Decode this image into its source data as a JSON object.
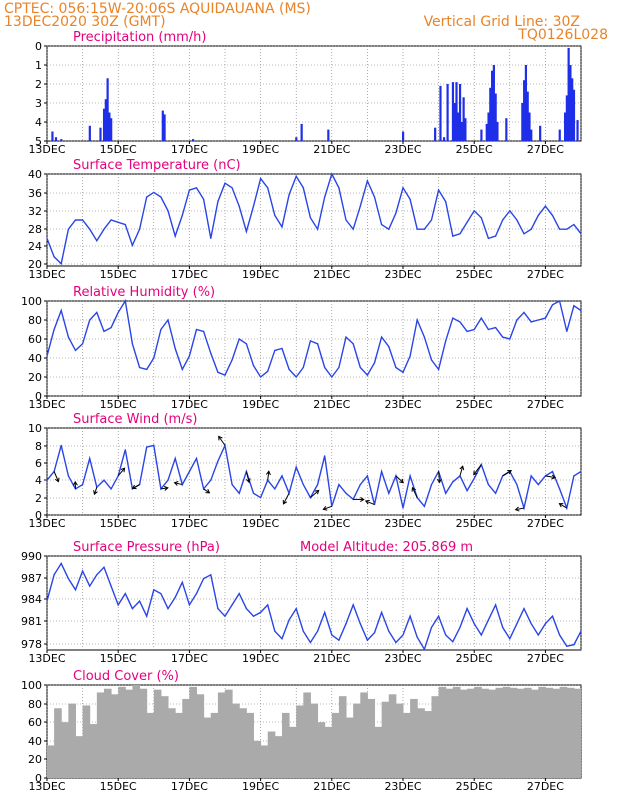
{
  "header": {
    "line1_left": "CPTEC:   056:15W-20:06S   AQUIDAUANA (MS)",
    "line2_left": "13DEC2020 30Z (GMT)",
    "line2_right": "Vertical Grid Line: 30Z",
    "line3_right": "TQ0126L028"
  },
  "colors": {
    "line": "#2a45e6",
    "bar": "#1f2fe8",
    "cloud": "#aaaaaa",
    "title": "#e5007e",
    "header": "#e8842a"
  },
  "chart_data": [
    {
      "type": "bar",
      "title": "Precipitation (mm/h)",
      "ylim": [
        0,
        5
      ],
      "yticks": [
        "0",
        "1",
        "2",
        "3",
        "4",
        "5"
      ],
      "xticks": [
        "13DEC",
        "15DEC",
        "17DEC",
        "19DEC",
        "21DEC",
        "23DEC",
        "25DEC",
        "27DEC"
      ],
      "bars": [
        [
          13.15,
          0.5
        ],
        [
          13.25,
          0.2
        ],
        [
          13.4,
          0.1
        ],
        [
          14.2,
          0.8
        ],
        [
          14.5,
          0.7
        ],
        [
          14.6,
          1.7
        ],
        [
          14.65,
          2.2
        ],
        [
          14.7,
          3.3
        ],
        [
          14.75,
          1.5
        ],
        [
          14.8,
          1.2
        ],
        [
          16.25,
          1.6
        ],
        [
          16.3,
          1.4
        ],
        [
          17.1,
          0.1
        ],
        [
          20.0,
          0.2
        ],
        [
          20.15,
          0.9
        ],
        [
          20.9,
          0.6
        ],
        [
          23.0,
          0.5
        ],
        [
          23.9,
          0.7
        ],
        [
          24.05,
          2.9
        ],
        [
          24.15,
          0.2
        ],
        [
          24.25,
          3.0
        ],
        [
          24.4,
          3.1
        ],
        [
          24.45,
          2.0
        ],
        [
          24.5,
          3.1
        ],
        [
          24.55,
          1.5
        ],
        [
          24.6,
          3.0
        ],
        [
          24.65,
          1.0
        ],
        [
          24.7,
          2.3
        ],
        [
          24.75,
          1.2
        ],
        [
          25.2,
          0.6
        ],
        [
          25.35,
          0.9
        ],
        [
          25.4,
          1.5
        ],
        [
          25.45,
          2.8
        ],
        [
          25.5,
          3.7
        ],
        [
          25.55,
          4.0
        ],
        [
          25.6,
          2.5
        ],
        [
          25.65,
          1.0
        ],
        [
          25.9,
          1.2
        ],
        [
          26.35,
          2.0
        ],
        [
          26.4,
          3.2
        ],
        [
          26.45,
          4.0
        ],
        [
          26.5,
          2.6
        ],
        [
          26.55,
          1.5
        ],
        [
          26.6,
          0.6
        ],
        [
          26.85,
          0.8
        ],
        [
          27.4,
          0.6
        ],
        [
          27.55,
          1.5
        ],
        [
          27.6,
          2.4
        ],
        [
          27.65,
          4.9
        ],
        [
          27.7,
          4.0
        ],
        [
          27.75,
          3.3
        ],
        [
          27.8,
          2.7
        ],
        [
          27.9,
          1.1
        ]
      ]
    },
    {
      "type": "line",
      "title": "Surface Temperature (nC)",
      "ylim": [
        20,
        40
      ],
      "yticks": [
        "20",
        "24",
        "28",
        "32",
        "36",
        "40"
      ],
      "xticks": [
        "13DEC",
        "15DEC",
        "17DEC",
        "19DEC",
        "21DEC",
        "23DEC",
        "25DEC",
        "27DEC"
      ],
      "x": [
        13,
        13.2,
        13.4,
        13.6,
        13.8,
        14,
        14.2,
        14.4,
        14.6,
        14.8,
        15,
        15.2,
        15.4,
        15.6,
        15.8,
        16,
        16.2,
        16.4,
        16.6,
        16.8,
        17,
        17.2,
        17.4,
        17.6,
        17.8,
        18,
        18.2,
        18.4,
        18.6,
        18.8,
        19,
        19.2,
        19.4,
        19.6,
        19.8,
        20,
        20.2,
        20.4,
        20.6,
        20.8,
        21,
        21.2,
        21.4,
        21.6,
        21.8,
        22,
        22.2,
        22.4,
        22.6,
        22.8,
        23,
        23.2,
        23.4,
        23.6,
        23.8,
        24,
        24.2,
        24.4,
        24.6,
        24.8,
        25,
        25.2,
        25.4,
        25.6,
        25.8,
        26,
        26.2,
        26.4,
        26.6,
        26.8,
        27,
        27.2,
        27.4,
        27.6,
        27.8,
        28
      ],
      "y": [
        26,
        22,
        20.5,
        28,
        30,
        30,
        28,
        25.5,
        28,
        30,
        29.5,
        29,
        24.5,
        28,
        35,
        36,
        35,
        32,
        26.5,
        31,
        36.5,
        37,
        34.5,
        26,
        34,
        38,
        37,
        33,
        27.5,
        33,
        39,
        37,
        31,
        28.5,
        35.5,
        39.5,
        37,
        30.5,
        28,
        35,
        40,
        37,
        30,
        28,
        33,
        38.5,
        35,
        29,
        28,
        31.5,
        37,
        34.5,
        28,
        28,
        30,
        36.5,
        34,
        26.5,
        27,
        29.5,
        32,
        30.5,
        26,
        26.5,
        30,
        32,
        30,
        27,
        28,
        31,
        33,
        31,
        28,
        28,
        29,
        27
      ]
    },
    {
      "type": "line",
      "title": "Relative Humidity (%)",
      "ylim": [
        0,
        100
      ],
      "yticks": [
        "0",
        "20",
        "40",
        "60",
        "80",
        "100"
      ],
      "xticks": [
        "13DEC",
        "15DEC",
        "17DEC",
        "19DEC",
        "21DEC",
        "23DEC",
        "25DEC",
        "27DEC"
      ],
      "x": [
        13,
        13.2,
        13.4,
        13.6,
        13.8,
        14,
        14.2,
        14.4,
        14.6,
        14.8,
        15,
        15.2,
        15.4,
        15.6,
        15.8,
        16,
        16.2,
        16.4,
        16.6,
        16.8,
        17,
        17.2,
        17.4,
        17.6,
        17.8,
        18,
        18.2,
        18.4,
        18.6,
        18.8,
        19,
        19.2,
        19.4,
        19.6,
        19.8,
        20,
        20.2,
        20.4,
        20.6,
        20.8,
        21,
        21.2,
        21.4,
        21.6,
        21.8,
        22,
        22.2,
        22.4,
        22.6,
        22.8,
        23,
        23.2,
        23.4,
        23.6,
        23.8,
        24,
        24.2,
        24.4,
        24.6,
        24.8,
        25,
        25.2,
        25.4,
        25.6,
        25.8,
        26,
        26.2,
        26.4,
        26.6,
        26.8,
        27,
        27.2,
        27.4,
        27.6,
        27.8,
        28
      ],
      "y": [
        42,
        70,
        90,
        62,
        48,
        55,
        80,
        88,
        68,
        72,
        88,
        100,
        55,
        30,
        28,
        40,
        70,
        80,
        50,
        28,
        42,
        70,
        68,
        45,
        25,
        22,
        38,
        60,
        55,
        32,
        20,
        26,
        48,
        50,
        28,
        20,
        30,
        58,
        55,
        30,
        20,
        30,
        62,
        55,
        30,
        22,
        35,
        62,
        52,
        30,
        25,
        42,
        80,
        62,
        38,
        28,
        58,
        82,
        78,
        68,
        70,
        82,
        70,
        72,
        62,
        60,
        80,
        88,
        78,
        80,
        82,
        96,
        100,
        68,
        95,
        90
      ]
    },
    {
      "type": "line",
      "title": "Surface Wind (m/s)",
      "ylim": [
        0,
        10
      ],
      "yticks": [
        "0",
        "2",
        "4",
        "6",
        "8",
        "10"
      ],
      "xticks": [
        "13DEC",
        "15DEC",
        "17DEC",
        "19DEC",
        "21DEC",
        "23DEC",
        "25DEC",
        "27DEC"
      ],
      "x": [
        13,
        13.2,
        13.4,
        13.6,
        13.8,
        14,
        14.2,
        14.4,
        14.6,
        14.8,
        15,
        15.2,
        15.4,
        15.6,
        15.8,
        16,
        16.2,
        16.4,
        16.6,
        16.8,
        17,
        17.2,
        17.4,
        17.6,
        17.8,
        18,
        18.2,
        18.4,
        18.6,
        18.8,
        19,
        19.2,
        19.4,
        19.6,
        19.8,
        20,
        20.2,
        20.4,
        20.6,
        20.8,
        21,
        21.2,
        21.4,
        21.6,
        21.8,
        22,
        22.2,
        22.4,
        22.6,
        22.8,
        23,
        23.2,
        23.4,
        23.6,
        23.8,
        24,
        24.2,
        24.4,
        24.6,
        24.8,
        25,
        25.2,
        25.4,
        25.6,
        25.8,
        26,
        26.2,
        26.4,
        26.6,
        26.8,
        27,
        27.2,
        27.4,
        27.6,
        27.8,
        28
      ],
      "y": [
        4,
        5,
        8,
        4.5,
        3,
        3.5,
        6.5,
        3.2,
        4,
        3,
        4.5,
        7.5,
        3,
        3.5,
        7.8,
        8,
        3,
        4,
        6.5,
        3.5,
        5,
        6.5,
        3,
        4,
        6.2,
        8,
        3.5,
        2.5,
        5,
        2.5,
        2,
        4,
        3,
        4.5,
        2.5,
        5.5,
        3.5,
        2,
        3.5,
        6.8,
        1,
        3.5,
        2.5,
        1.8,
        3.5,
        4.5,
        1.2,
        5,
        2.5,
        4.5,
        0.8,
        4.5,
        2,
        1,
        3.5,
        5,
        2.5,
        3.8,
        4.5,
        2.8,
        4.2,
        5.8,
        3.5,
        2.5,
        4.5,
        5,
        3.5,
        0.8,
        4.5,
        3.5,
        4.5,
        5,
        3,
        0.8,
        4.5,
        5
      ]
    },
    {
      "type": "line",
      "title": "Surface Pressure (hPa)",
      "annotation": "Model Altitude: 205.869 m",
      "ylim": [
        977.5,
        990
      ],
      "yticks": [
        "978",
        "981",
        "984",
        "987",
        "990"
      ],
      "xticks": [
        "13DEC",
        "15DEC",
        "17DEC",
        "19DEC",
        "21DEC",
        "23DEC",
        "25DEC",
        "27DEC"
      ],
      "x": [
        13,
        13.2,
        13.4,
        13.6,
        13.8,
        14,
        14.2,
        14.4,
        14.6,
        14.8,
        15,
        15.2,
        15.4,
        15.6,
        15.8,
        16,
        16.2,
        16.4,
        16.6,
        16.8,
        17,
        17.2,
        17.4,
        17.6,
        17.8,
        18,
        18.2,
        18.4,
        18.6,
        18.8,
        19,
        19.2,
        19.4,
        19.6,
        19.8,
        20,
        20.2,
        20.4,
        20.6,
        20.8,
        21,
        21.2,
        21.4,
        21.6,
        21.8,
        22,
        22.2,
        22.4,
        22.6,
        22.8,
        23,
        23.2,
        23.4,
        23.6,
        23.8,
        24,
        24.2,
        24.4,
        24.6,
        24.8,
        25,
        25.2,
        25.4,
        25.6,
        25.8,
        26,
        26.2,
        26.4,
        26.6,
        26.8,
        27,
        27.2,
        27.4,
        27.6,
        27.8,
        28
      ],
      "y": [
        984,
        987.5,
        989,
        987,
        985.5,
        988,
        986,
        987.5,
        988.5,
        986,
        983.5,
        985,
        983,
        984,
        982,
        985.5,
        985,
        983,
        984.5,
        986.5,
        983.5,
        985,
        987,
        987.5,
        983,
        982,
        983.5,
        985,
        983,
        982,
        982.5,
        983.5,
        980,
        979,
        981.5,
        983,
        980,
        978.5,
        980,
        982.5,
        979.5,
        978.8,
        981,
        983.5,
        981,
        978.8,
        979.8,
        982.5,
        980,
        978.5,
        979.5,
        982,
        979.2,
        977.6,
        980.5,
        982,
        979.5,
        978.6,
        980.5,
        983,
        981,
        979.5,
        981.5,
        983.5,
        980.5,
        979,
        981,
        983,
        981,
        979.5,
        981,
        982,
        979.5,
        978,
        978.2,
        980
      ]
    },
    {
      "type": "bar",
      "title": "Cloud Cover (%)",
      "ylim": [
        0,
        100
      ],
      "yticks": [
        "0",
        "20",
        "40",
        "60",
        "80",
        "100"
      ],
      "xticks": [
        "13DEC",
        "15DEC",
        "17DEC",
        "19DEC",
        "21DEC",
        "23DEC",
        "25DEC",
        "27DEC"
      ],
      "x": [
        13,
        13.2,
        13.4,
        13.6,
        13.8,
        14,
        14.2,
        14.4,
        14.6,
        14.8,
        15,
        15.2,
        15.4,
        15.6,
        15.8,
        16,
        16.2,
        16.4,
        16.6,
        16.8,
        17,
        17.2,
        17.4,
        17.6,
        17.8,
        18,
        18.2,
        18.4,
        18.6,
        18.8,
        19,
        19.2,
        19.4,
        19.6,
        19.8,
        20,
        20.2,
        20.4,
        20.6,
        20.8,
        21,
        21.2,
        21.4,
        21.6,
        21.8,
        22,
        22.2,
        22.4,
        22.6,
        22.8,
        23,
        23.2,
        23.4,
        23.6,
        23.8,
        24,
        24.2,
        24.4,
        24.6,
        24.8,
        25,
        25.2,
        25.4,
        25.6,
        25.8,
        26,
        26.2,
        26.4,
        26.6,
        26.8,
        27,
        27.2,
        27.4,
        27.6,
        27.8,
        28
      ],
      "y": [
        35,
        75,
        60,
        80,
        45,
        78,
        58,
        92,
        96,
        90,
        98,
        95,
        100,
        96,
        70,
        95,
        88,
        75,
        70,
        85,
        98,
        90,
        65,
        70,
        92,
        95,
        80,
        75,
        70,
        40,
        35,
        50,
        45,
        70,
        55,
        78,
        92,
        80,
        60,
        55,
        70,
        88,
        65,
        80,
        92,
        85,
        55,
        82,
        90,
        80,
        70,
        85,
        75,
        72,
        88,
        98,
        96,
        98,
        95,
        96,
        98,
        96,
        95,
        97,
        98,
        97,
        96,
        97,
        95,
        98,
        97,
        96,
        98,
        97,
        96,
        97
      ]
    }
  ]
}
